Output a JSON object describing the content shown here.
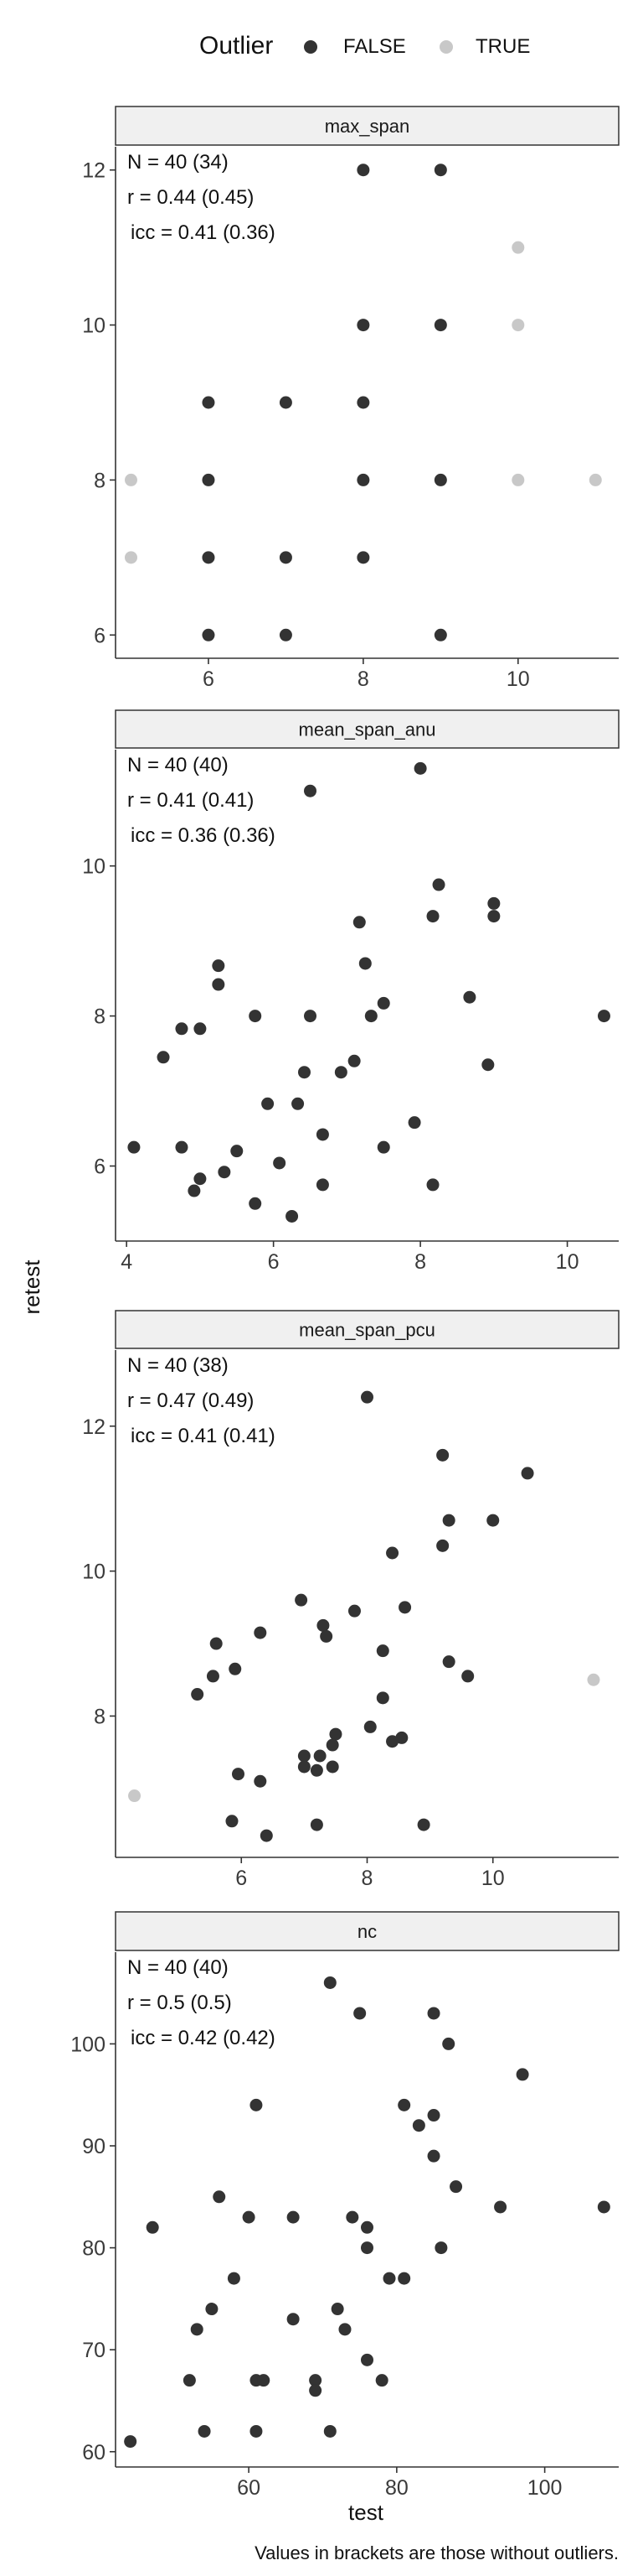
{
  "legend": {
    "title": "Outlier",
    "items": [
      {
        "label": "FALSE",
        "color": "#333333"
      },
      {
        "label": "TRUE",
        "color": "#c8c8c8"
      }
    ]
  },
  "axis_titles": {
    "x": "test",
    "y": "retest"
  },
  "caption": "Values in brackets are those without outliers.",
  "colors": {
    "strip_fill": "#f0f0f0",
    "strip_border": "#333333",
    "axis": "#333333"
  },
  "chart_data": [
    {
      "type": "scatter",
      "strip": "max_span",
      "stats": [
        "N = 40 (34)",
        "r = 0.44 (0.45)",
        "icc = 0.41 (0.36)"
      ],
      "xlim": [
        4.8,
        11.3
      ],
      "ylim": [
        5.7,
        12.3
      ],
      "xticks": [
        6,
        8,
        10
      ],
      "yticks": [
        6,
        8,
        10,
        12
      ],
      "points": [
        {
          "x": 6,
          "y": 9,
          "o": false
        },
        {
          "x": 6,
          "y": 8,
          "o": false
        },
        {
          "x": 6,
          "y": 7,
          "o": false
        },
        {
          "x": 6,
          "y": 6,
          "o": false
        },
        {
          "x": 7,
          "y": 9,
          "o": false
        },
        {
          "x": 7,
          "y": 7,
          "o": false
        },
        {
          "x": 7,
          "y": 6,
          "o": false
        },
        {
          "x": 8,
          "y": 12,
          "o": false
        },
        {
          "x": 8,
          "y": 10,
          "o": false
        },
        {
          "x": 8,
          "y": 9,
          "o": false
        },
        {
          "x": 8,
          "y": 8,
          "o": false
        },
        {
          "x": 8,
          "y": 7,
          "o": false
        },
        {
          "x": 9,
          "y": 12,
          "o": false
        },
        {
          "x": 9,
          "y": 10,
          "o": false
        },
        {
          "x": 9,
          "y": 8,
          "o": false
        },
        {
          "x": 9,
          "y": 6,
          "o": false
        },
        {
          "x": 5,
          "y": 8,
          "o": true
        },
        {
          "x": 5,
          "y": 7,
          "o": true
        },
        {
          "x": 10,
          "y": 11,
          "o": true
        },
        {
          "x": 10,
          "y": 10,
          "o": true
        },
        {
          "x": 10,
          "y": 8,
          "o": true
        },
        {
          "x": 11,
          "y": 8,
          "o": true
        }
      ]
    },
    {
      "type": "scatter",
      "strip": "mean_span_anu",
      "stats": [
        "N = 40 (40)",
        "r = 0.41 (0.41)",
        "icc = 0.36 (0.36)"
      ],
      "xlim": [
        3.85,
        10.7
      ],
      "ylim": [
        5.0,
        11.55
      ],
      "xticks": [
        4,
        6,
        8,
        10
      ],
      "yticks": [
        6,
        8,
        10
      ],
      "points": [
        {
          "x": 8.0,
          "y": 11.3,
          "o": false
        },
        {
          "x": 6.5,
          "y": 11.0,
          "o": false
        },
        {
          "x": 8.25,
          "y": 9.75,
          "o": false
        },
        {
          "x": 9.0,
          "y": 9.5,
          "o": false
        },
        {
          "x": 9.0,
          "y": 9.33,
          "o": false
        },
        {
          "x": 8.17,
          "y": 9.33,
          "o": false
        },
        {
          "x": 7.17,
          "y": 9.25,
          "o": false
        },
        {
          "x": 5.25,
          "y": 8.67,
          "o": false
        },
        {
          "x": 7.25,
          "y": 8.7,
          "o": false
        },
        {
          "x": 5.25,
          "y": 8.42,
          "o": false
        },
        {
          "x": 8.67,
          "y": 8.25,
          "o": false
        },
        {
          "x": 7.5,
          "y": 8.17,
          "o": false
        },
        {
          "x": 5.75,
          "y": 8.0,
          "o": false
        },
        {
          "x": 6.5,
          "y": 8.0,
          "o": false
        },
        {
          "x": 7.33,
          "y": 8.0,
          "o": false
        },
        {
          "x": 10.5,
          "y": 8.0,
          "o": false
        },
        {
          "x": 4.75,
          "y": 7.83,
          "o": false
        },
        {
          "x": 5.0,
          "y": 7.83,
          "o": false
        },
        {
          "x": 4.5,
          "y": 7.45,
          "o": false
        },
        {
          "x": 8.92,
          "y": 7.35,
          "o": false
        },
        {
          "x": 7.1,
          "y": 7.4,
          "o": false
        },
        {
          "x": 6.42,
          "y": 7.25,
          "o": false
        },
        {
          "x": 6.92,
          "y": 7.25,
          "o": false
        },
        {
          "x": 5.92,
          "y": 6.83,
          "o": false
        },
        {
          "x": 6.33,
          "y": 6.83,
          "o": false
        },
        {
          "x": 7.92,
          "y": 6.58,
          "o": false
        },
        {
          "x": 6.67,
          "y": 6.42,
          "o": false
        },
        {
          "x": 4.1,
          "y": 6.25,
          "o": false
        },
        {
          "x": 4.75,
          "y": 6.25,
          "o": false
        },
        {
          "x": 7.5,
          "y": 6.25,
          "o": false
        },
        {
          "x": 5.5,
          "y": 6.2,
          "o": false
        },
        {
          "x": 6.08,
          "y": 6.04,
          "o": false
        },
        {
          "x": 5.33,
          "y": 5.92,
          "o": false
        },
        {
          "x": 5.0,
          "y": 5.83,
          "o": false
        },
        {
          "x": 6.67,
          "y": 5.75,
          "o": false
        },
        {
          "x": 8.17,
          "y": 5.75,
          "o": false
        },
        {
          "x": 4.92,
          "y": 5.67,
          "o": false
        },
        {
          "x": 5.75,
          "y": 5.5,
          "o": false
        },
        {
          "x": 6.25,
          "y": 5.33,
          "o": false
        }
      ]
    },
    {
      "type": "scatter",
      "strip": "mean_span_pcu",
      "stats": [
        "N = 40 (38)",
        "r = 0.47 (0.49)",
        "icc = 0.41 (0.41)"
      ],
      "xlim": [
        4.0,
        12.0
      ],
      "ylim": [
        6.05,
        13.05
      ],
      "xticks": [
        6,
        8,
        10
      ],
      "yticks": [
        8,
        10,
        12
      ],
      "points": [
        {
          "x": 8.0,
          "y": 12.4,
          "o": false
        },
        {
          "x": 9.2,
          "y": 11.6,
          "o": false
        },
        {
          "x": 10.55,
          "y": 11.35,
          "o": false
        },
        {
          "x": 9.3,
          "y": 10.7,
          "o": false
        },
        {
          "x": 10.0,
          "y": 10.7,
          "o": false
        },
        {
          "x": 9.2,
          "y": 10.35,
          "o": false
        },
        {
          "x": 8.4,
          "y": 10.25,
          "o": false
        },
        {
          "x": 6.95,
          "y": 9.6,
          "o": false
        },
        {
          "x": 8.6,
          "y": 9.5,
          "o": false
        },
        {
          "x": 7.8,
          "y": 9.45,
          "o": false
        },
        {
          "x": 7.3,
          "y": 9.25,
          "o": false
        },
        {
          "x": 7.35,
          "y": 9.1,
          "o": false
        },
        {
          "x": 6.3,
          "y": 9.15,
          "o": false
        },
        {
          "x": 5.6,
          "y": 9.0,
          "o": false
        },
        {
          "x": 8.25,
          "y": 8.9,
          "o": false
        },
        {
          "x": 9.3,
          "y": 8.75,
          "o": false
        },
        {
          "x": 5.9,
          "y": 8.65,
          "o": false
        },
        {
          "x": 9.6,
          "y": 8.55,
          "o": false
        },
        {
          "x": 5.55,
          "y": 8.55,
          "o": false
        },
        {
          "x": 5.3,
          "y": 8.3,
          "o": false
        },
        {
          "x": 8.25,
          "y": 8.25,
          "o": false
        },
        {
          "x": 8.05,
          "y": 7.85,
          "o": false
        },
        {
          "x": 7.5,
          "y": 7.75,
          "o": false
        },
        {
          "x": 8.55,
          "y": 7.7,
          "o": false
        },
        {
          "x": 8.4,
          "y": 7.65,
          "o": false
        },
        {
          "x": 7.45,
          "y": 7.6,
          "o": false
        },
        {
          "x": 7.0,
          "y": 7.45,
          "o": false
        },
        {
          "x": 7.25,
          "y": 7.45,
          "o": false
        },
        {
          "x": 7.0,
          "y": 7.3,
          "o": false
        },
        {
          "x": 7.45,
          "y": 7.3,
          "o": false
        },
        {
          "x": 7.2,
          "y": 7.25,
          "o": false
        },
        {
          "x": 5.95,
          "y": 7.2,
          "o": false
        },
        {
          "x": 6.3,
          "y": 7.1,
          "o": false
        },
        {
          "x": 5.85,
          "y": 6.55,
          "o": false
        },
        {
          "x": 7.2,
          "y": 6.5,
          "o": false
        },
        {
          "x": 8.9,
          "y": 6.5,
          "o": false
        },
        {
          "x": 6.4,
          "y": 6.35,
          "o": false
        },
        {
          "x": 4.3,
          "y": 6.9,
          "o": true
        },
        {
          "x": 11.6,
          "y": 8.5,
          "o": true
        }
      ]
    },
    {
      "type": "scatter",
      "strip": "nc",
      "stats": [
        "N = 40 (40)",
        "r = 0.5 (0.5)",
        "icc = 0.42 (0.42)"
      ],
      "xlim": [
        42,
        110
      ],
      "ylim": [
        58.5,
        109
      ],
      "xticks": [
        60,
        80,
        100
      ],
      "yticks": [
        60,
        70,
        80,
        90,
        100
      ],
      "points": [
        {
          "x": 71,
          "y": 106,
          "o": false
        },
        {
          "x": 75,
          "y": 103,
          "o": false
        },
        {
          "x": 85,
          "y": 103,
          "o": false
        },
        {
          "x": 87,
          "y": 100,
          "o": false
        },
        {
          "x": 97,
          "y": 97,
          "o": false
        },
        {
          "x": 61,
          "y": 94,
          "o": false
        },
        {
          "x": 81,
          "y": 94,
          "o": false
        },
        {
          "x": 85,
          "y": 93,
          "o": false
        },
        {
          "x": 83,
          "y": 92,
          "o": false
        },
        {
          "x": 85,
          "y": 89,
          "o": false
        },
        {
          "x": 88,
          "y": 86,
          "o": false
        },
        {
          "x": 56,
          "y": 85,
          "o": false
        },
        {
          "x": 94,
          "y": 84,
          "o": false
        },
        {
          "x": 108,
          "y": 84,
          "o": false
        },
        {
          "x": 60,
          "y": 83,
          "o": false
        },
        {
          "x": 66,
          "y": 83,
          "o": false
        },
        {
          "x": 74,
          "y": 83,
          "o": false
        },
        {
          "x": 47,
          "y": 82,
          "o": false
        },
        {
          "x": 76,
          "y": 82,
          "o": false
        },
        {
          "x": 76,
          "y": 80,
          "o": false
        },
        {
          "x": 86,
          "y": 80,
          "o": false
        },
        {
          "x": 58,
          "y": 77,
          "o": false
        },
        {
          "x": 79,
          "y": 77,
          "o": false
        },
        {
          "x": 81,
          "y": 77,
          "o": false
        },
        {
          "x": 55,
          "y": 74,
          "o": false
        },
        {
          "x": 72,
          "y": 74,
          "o": false
        },
        {
          "x": 66,
          "y": 73,
          "o": false
        },
        {
          "x": 53,
          "y": 72,
          "o": false
        },
        {
          "x": 73,
          "y": 72,
          "o": false
        },
        {
          "x": 76,
          "y": 69,
          "o": false
        },
        {
          "x": 52,
          "y": 67,
          "o": false
        },
        {
          "x": 61,
          "y": 67,
          "o": false
        },
        {
          "x": 62,
          "y": 67,
          "o": false
        },
        {
          "x": 69,
          "y": 67,
          "o": false
        },
        {
          "x": 78,
          "y": 67,
          "o": false
        },
        {
          "x": 69,
          "y": 66,
          "o": false
        },
        {
          "x": 54,
          "y": 62,
          "o": false
        },
        {
          "x": 61,
          "y": 62,
          "o": false
        },
        {
          "x": 71,
          "y": 62,
          "o": false
        },
        {
          "x": 44,
          "y": 61,
          "o": false
        }
      ]
    }
  ]
}
